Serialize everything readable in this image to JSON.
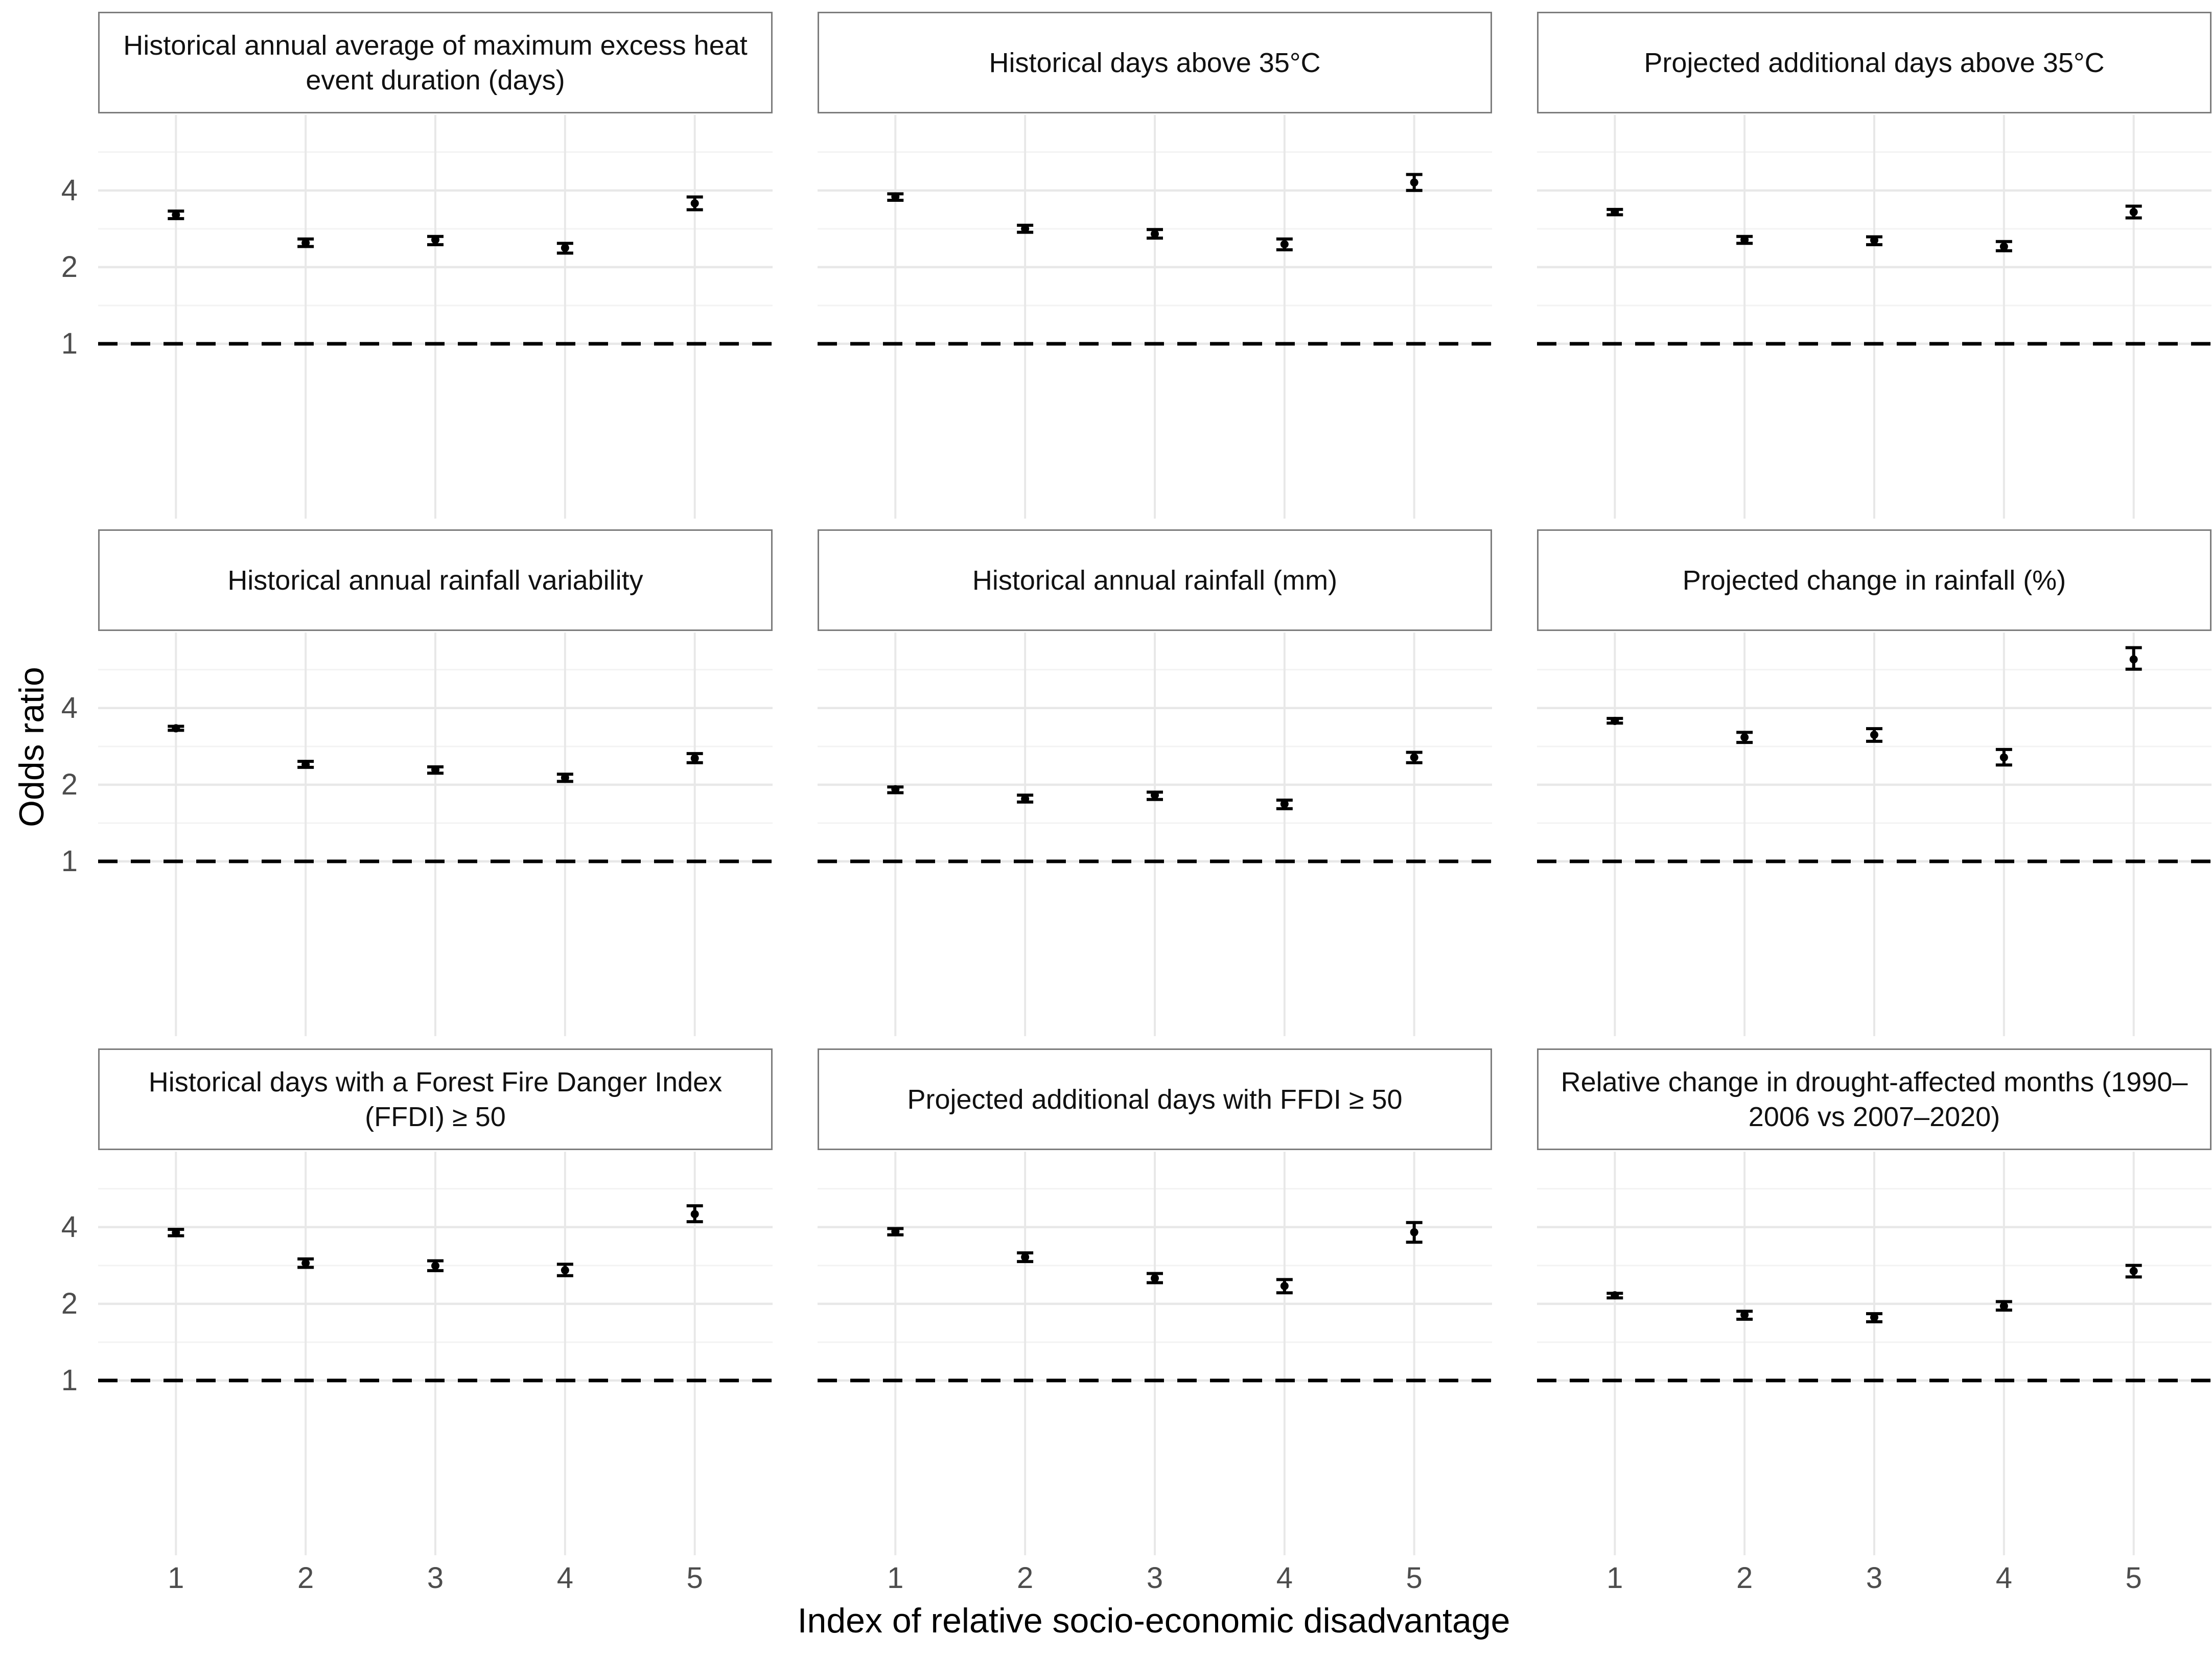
{
  "figure": {
    "y_axis_title": "Odds ratio",
    "x_axis_title": "Index of relative socio-economic disadvantage",
    "y_tick_labels": [
      "4",
      "2",
      "1"
    ],
    "x_tick_labels": [
      "1",
      "2",
      "3",
      "4",
      "5"
    ],
    "reference_line_label": "1",
    "colors": {
      "background": "#ffffff",
      "grid_major": "#e8e8e8",
      "grid_minor": "#f3f3f3",
      "strip_border": "#7d7d7d",
      "tick_text": "#4d4d4d",
      "data": "#000000"
    }
  },
  "chart_data": [
    {
      "type": "scatter",
      "title": "Historical annual average of maximum excess heat event duration (days)",
      "xlabel": "Index of relative socio-economic disadvantage",
      "ylabel": "Odds ratio",
      "y_scale": "log",
      "y_breaks": [
        1,
        2,
        4
      ],
      "ylim": [
        0.21,
        7.6
      ],
      "reference_line": 1,
      "grid": true,
      "legend": "none",
      "x": [
        1,
        2,
        3,
        4,
        5
      ],
      "odds_ratio": [
        3.21,
        2.49,
        2.56,
        2.38,
        3.56
      ],
      "ci_low": [
        3.1,
        2.41,
        2.45,
        2.27,
        3.36
      ],
      "ci_high": [
        3.32,
        2.58,
        2.64,
        2.48,
        3.77
      ]
    },
    {
      "type": "scatter",
      "title": "Historical days above 35°C",
      "y_scale": "log",
      "y_breaks": [
        1,
        2,
        4
      ],
      "reference_line": 1,
      "x": [
        1,
        2,
        3,
        4,
        5
      ],
      "odds_ratio": [
        3.78,
        2.83,
        2.7,
        2.46,
        4.3
      ],
      "ci_low": [
        3.66,
        2.74,
        2.6,
        2.34,
        4.0
      ],
      "ci_high": [
        3.88,
        2.92,
        2.81,
        2.58,
        4.62
      ]
    },
    {
      "type": "scatter",
      "title": "Projected additional days above 35°C",
      "y_scale": "log",
      "y_breaks": [
        1,
        2,
        4
      ],
      "reference_line": 1,
      "x": [
        1,
        2,
        3,
        4,
        5
      ],
      "odds_ratio": [
        3.29,
        2.56,
        2.55,
        2.41,
        3.29
      ],
      "ci_low": [
        3.21,
        2.48,
        2.45,
        2.32,
        3.12
      ],
      "ci_high": [
        3.37,
        2.64,
        2.63,
        2.52,
        3.47
      ]
    },
    {
      "type": "scatter",
      "title": "Historical annual rainfall variability",
      "y_scale": "log",
      "y_breaks": [
        1,
        2,
        4
      ],
      "reference_line": 1,
      "x": [
        1,
        2,
        3,
        4,
        5
      ],
      "odds_ratio": [
        3.33,
        2.4,
        2.29,
        2.13,
        2.54
      ],
      "ci_low": [
        3.27,
        2.34,
        2.22,
        2.06,
        2.44
      ],
      "ci_high": [
        3.39,
        2.47,
        2.35,
        2.2,
        2.65
      ]
    },
    {
      "type": "scatter",
      "title": "Historical annual rainfall (mm)",
      "y_scale": "log",
      "y_breaks": [
        1,
        2,
        4
      ],
      "reference_line": 1,
      "x": [
        1,
        2,
        3,
        4,
        5
      ],
      "odds_ratio": [
        1.92,
        1.76,
        1.82,
        1.68,
        2.56
      ],
      "ci_low": [
        1.86,
        1.71,
        1.75,
        1.61,
        2.44
      ],
      "ci_high": [
        1.96,
        1.82,
        1.87,
        1.74,
        2.68
      ]
    },
    {
      "type": "scatter",
      "title": "Projected change in rainfall (%)",
      "y_scale": "log",
      "y_breaks": [
        1,
        2,
        4
      ],
      "reference_line": 1,
      "x": [
        1,
        2,
        3,
        4,
        5
      ],
      "odds_ratio": [
        3.56,
        3.07,
        3.14,
        2.56,
        6.21
      ],
      "ci_low": [
        3.49,
        2.93,
        2.96,
        2.39,
        5.68
      ],
      "ci_high": [
        3.64,
        3.21,
        3.32,
        2.75,
        6.9
      ]
    },
    {
      "type": "scatter",
      "title": "Historical days with a Forest Fire Danger Index (FFDI) ≥ 50",
      "y_scale": "log",
      "y_breaks": [
        1,
        2,
        4
      ],
      "reference_line": 1,
      "x": [
        1,
        2,
        3,
        4,
        5
      ],
      "odds_ratio": [
        3.81,
        2.89,
        2.82,
        2.71,
        4.5
      ],
      "ci_low": [
        3.7,
        2.78,
        2.7,
        2.58,
        4.2
      ],
      "ci_high": [
        3.92,
        3.0,
        2.95,
        2.86,
        4.85
      ]
    },
    {
      "type": "scatter",
      "title": "Projected additional days with FFDI ≥ 50",
      "y_scale": "log",
      "y_breaks": [
        1,
        2,
        4
      ],
      "reference_line": 1,
      "x": [
        1,
        2,
        3,
        4,
        5
      ],
      "odds_ratio": [
        3.84,
        3.05,
        2.52,
        2.35,
        3.82
      ],
      "ci_low": [
        3.73,
        2.93,
        2.42,
        2.21,
        3.49
      ],
      "ci_high": [
        3.95,
        3.17,
        2.63,
        2.49,
        4.17
      ]
    },
    {
      "type": "scatter",
      "title": "Relative change in drought-affected months (1990–2006 vs 2007–2020)",
      "y_scale": "log",
      "y_breaks": [
        1,
        2,
        4
      ],
      "reference_line": 1,
      "x": [
        1,
        2,
        3,
        4,
        5
      ],
      "odds_ratio": [
        2.16,
        1.81,
        1.77,
        1.96,
        2.69
      ],
      "ci_low": [
        2.11,
        1.74,
        1.7,
        1.89,
        2.55
      ],
      "ci_high": [
        2.2,
        1.87,
        1.83,
        2.04,
        2.83
      ]
    }
  ]
}
